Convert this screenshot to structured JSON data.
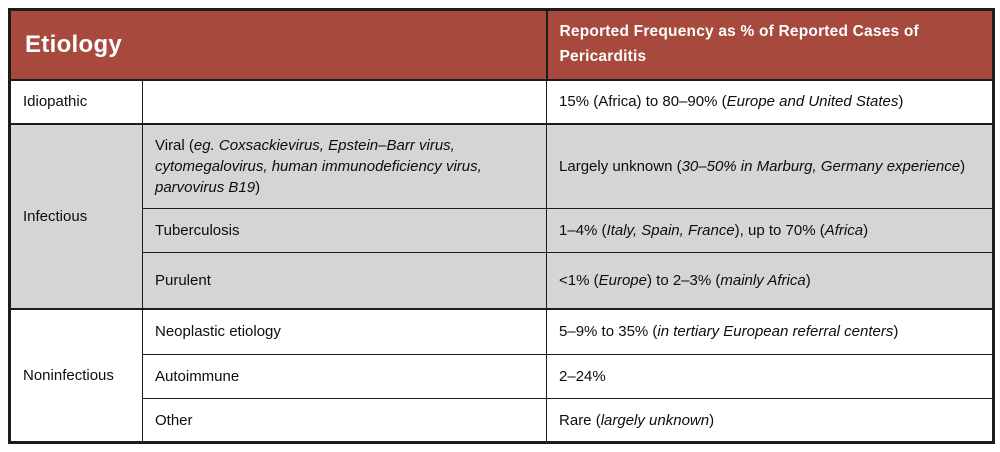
{
  "colors": {
    "header_bg": "#a74a3d",
    "header_text": "#ffffff",
    "gray_bg": "#d5d5d5",
    "white_bg": "#ffffff",
    "border": "#1c1c1c",
    "text": "#0d0d0d"
  },
  "header": {
    "etiology": "Etiology",
    "frequency": "Reported Frequency as % of Reported Cases of Pericarditis"
  },
  "cells": {
    "idiopathic_label": "Idiopathic",
    "idiopathic_freq": [
      {
        "t": "15% (Africa) to 80–90% ("
      },
      {
        "t": "Europe and United States",
        "i": true
      },
      {
        "t": ")"
      }
    ],
    "infectious_label": "Infectious",
    "viral_detail": [
      {
        "t": "Viral ("
      },
      {
        "t": "eg. Coxsackievirus, Epstein–Barr virus, cytomegalovirus, human immunodeficiency virus, parvovirus B19",
        "i": true
      },
      {
        "t": ")"
      }
    ],
    "viral_freq": [
      {
        "t": "Largely unknown ("
      },
      {
        "t": "30–50% in Marburg, Germany experience",
        "i": true
      },
      {
        "t": ")"
      }
    ],
    "tuberculosis_detail": [
      {
        "t": "Tuberculosis"
      }
    ],
    "tuberculosis_freq": [
      {
        "t": "1–4% ("
      },
      {
        "t": "Italy, Spain, France",
        "i": true
      },
      {
        "t": "), up to 70% ("
      },
      {
        "t": "Africa",
        "i": true
      },
      {
        "t": ")"
      }
    ],
    "purulent_detail": [
      {
        "t": "Purulent"
      }
    ],
    "purulent_freq": [
      {
        "t": "<1% ("
      },
      {
        "t": "Europe",
        "i": true
      },
      {
        "t": ") to 2–3% ("
      },
      {
        "t": "mainly Africa",
        "i": true
      },
      {
        "t": ")"
      }
    ],
    "noninfectious_label": "Noninfectious",
    "neoplastic_detail": [
      {
        "t": "Neoplastic etiology"
      }
    ],
    "neoplastic_freq": [
      {
        "t": "5–9% to 35% ("
      },
      {
        "t": "in tertiary European referral centers",
        "i": true
      },
      {
        "t": ")"
      }
    ],
    "autoimmune_detail": [
      {
        "t": "Autoimmune"
      }
    ],
    "autoimmune_freq": [
      {
        "t": "2–24%"
      }
    ],
    "other_detail": [
      {
        "t": "Other"
      }
    ],
    "other_freq": [
      {
        "t": "Rare ("
      },
      {
        "t": "largely unknown",
        "i": true
      },
      {
        "t": ")"
      }
    ]
  }
}
